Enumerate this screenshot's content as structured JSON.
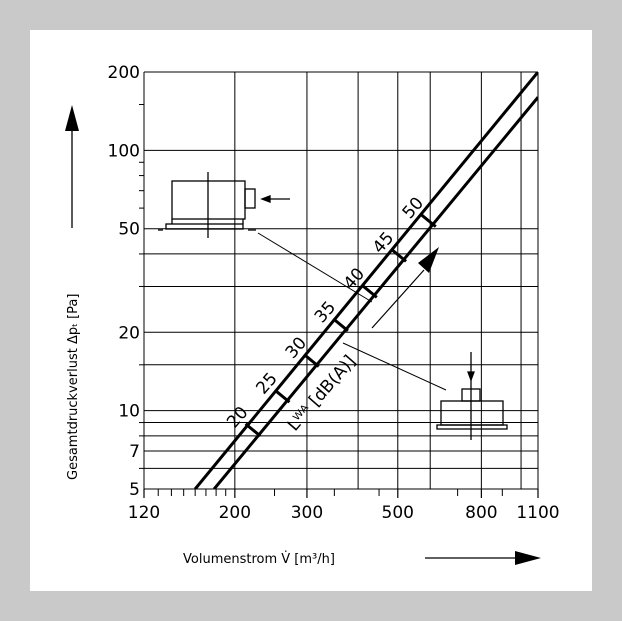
{
  "chart_data": {
    "type": "line",
    "title": "",
    "x_axis": {
      "label": "Volumenstrom  V̇  [m³/h]",
      "scale": "log",
      "range": [
        120,
        1100
      ],
      "tick_labels": [
        "120",
        "200",
        "300",
        "500",
        "800",
        "1100"
      ],
      "tick_values": [
        120,
        200,
        300,
        500,
        800,
        1100
      ],
      "gridlines": [
        120,
        200,
        300,
        400,
        500,
        600,
        800,
        1000,
        1100
      ]
    },
    "y_axis": {
      "label": "Gesamtdruckverlust  Δpₜ  [Pa]",
      "scale": "log",
      "range": [
        5,
        200
      ],
      "tick_labels": [
        "5",
        "7",
        "10",
        "20",
        "50",
        "100",
        "200"
      ],
      "tick_values": [
        5,
        7,
        10,
        20,
        50,
        100,
        200
      ],
      "gridlines": [
        5,
        6,
        7,
        8,
        9,
        10,
        15,
        20,
        30,
        40,
        50,
        100,
        200
      ]
    },
    "series": [
      {
        "x": [
          160,
          1100
        ],
        "y": [
          5,
          200
        ]
      },
      {
        "x": [
          178,
          1100
        ],
        "y": [
          5,
          160
        ]
      }
    ],
    "noise_label": "Lᵂᴬ [dB(A)]",
    "noise_marks": [
      {
        "label": "20",
        "x": 218,
        "y": 8.6
      },
      {
        "label": "25",
        "x": 257,
        "y": 11.6
      },
      {
        "label": "30",
        "x": 303,
        "y": 15.9
      },
      {
        "label": "35",
        "x": 357,
        "y": 21.8
      },
      {
        "label": "40",
        "x": 420,
        "y": 29.3
      },
      {
        "label": "45",
        "x": 495,
        "y": 40.3
      },
      {
        "label": "50",
        "x": 585,
        "y": 54.8
      }
    ],
    "grid": true,
    "legend": "none"
  }
}
